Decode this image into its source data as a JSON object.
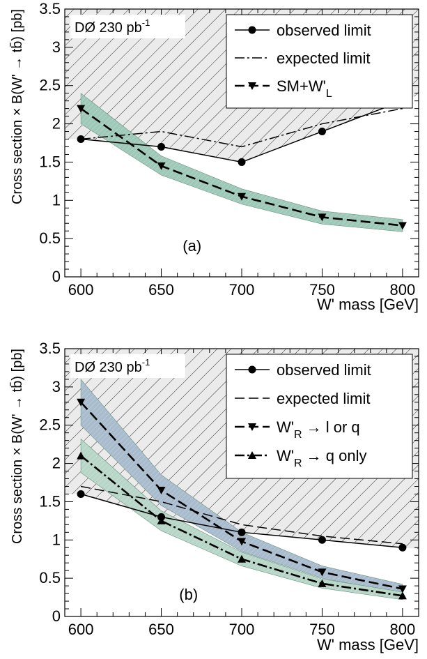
{
  "chart_data": [
    {
      "type": "line",
      "panel_label": "(a)",
      "experiment_label": "DØ 230 pb",
      "experiment_label_sup": "-1",
      "xlabel": "W' mass [GeV]",
      "ylabel": "Cross section × B(W' → tb̄) [pb]",
      "xlim": [
        590,
        810
      ],
      "ylim": [
        0,
        3.5
      ],
      "xticks": [
        600,
        650,
        700,
        750,
        800
      ],
      "yticks": [
        0,
        0.5,
        1,
        1.5,
        2,
        2.5,
        3,
        3.5
      ],
      "excluded_region_shaded": true,
      "legend_position": "top-right",
      "series": [
        {
          "name": "observed limit",
          "style": "solid-circle",
          "x": [
            600,
            650,
            700,
            750,
            800
          ],
          "y": [
            1.8,
            1.7,
            1.5,
            1.9,
            2.3
          ]
        },
        {
          "name": "expected limit",
          "style": "dash-dot",
          "x": [
            600,
            650,
            700,
            750,
            800
          ],
          "y": [
            1.8,
            1.9,
            1.7,
            2.0,
            2.2
          ]
        },
        {
          "name": "SM+W'",
          "name_sub": "L",
          "style": "dashed-downtriangle",
          "x": [
            600,
            650,
            700,
            750,
            800
          ],
          "y": [
            2.2,
            1.45,
            1.05,
            0.78,
            0.67
          ],
          "band_low": [
            2.0,
            1.33,
            0.95,
            0.69,
            0.59
          ],
          "band_high": [
            2.4,
            1.58,
            1.15,
            0.86,
            0.75
          ],
          "band_color": "#9ec9b9"
        }
      ]
    },
    {
      "type": "line",
      "panel_label": "(b)",
      "experiment_label": "DØ 230 pb",
      "experiment_label_sup": "-1",
      "xlabel": "W' mass [GeV]",
      "ylabel": "Cross section × B(W' → tb̄) [pb]",
      "xlim": [
        590,
        810
      ],
      "ylim": [
        0,
        3.5
      ],
      "xticks": [
        600,
        650,
        700,
        750,
        800
      ],
      "yticks": [
        0,
        0.5,
        1,
        1.5,
        2,
        2.5,
        3,
        3.5
      ],
      "excluded_region_shaded": true,
      "legend_position": "top-right",
      "series": [
        {
          "name": "observed limit",
          "style": "solid-circle",
          "x": [
            600,
            650,
            700,
            750,
            800
          ],
          "y": [
            1.6,
            1.3,
            1.1,
            1.0,
            0.9
          ]
        },
        {
          "name": "expected limit",
          "style": "dashed",
          "x": [
            600,
            650,
            700,
            750,
            800
          ],
          "y": [
            1.7,
            1.5,
            1.2,
            1.05,
            0.95
          ]
        },
        {
          "name": "W'",
          "name_sub": "R",
          "name_rest": " → l or q",
          "style": "dashed-downtriangle",
          "x": [
            600,
            650,
            700,
            750,
            800
          ],
          "y": [
            2.8,
            1.65,
            0.98,
            0.58,
            0.36
          ],
          "band_low": [
            2.5,
            1.45,
            0.85,
            0.5,
            0.3
          ],
          "band_high": [
            3.1,
            1.85,
            1.1,
            0.66,
            0.42
          ],
          "band_color": "#a9bccd"
        },
        {
          "name": "W'",
          "name_sub": "R",
          "name_rest": " → q only",
          "style": "dash-dot-uptriangle",
          "x": [
            600,
            650,
            700,
            750,
            800
          ],
          "y": [
            2.1,
            1.25,
            0.75,
            0.43,
            0.27
          ],
          "band_low": [
            1.88,
            1.12,
            0.66,
            0.37,
            0.22
          ],
          "band_high": [
            2.32,
            1.38,
            0.84,
            0.49,
            0.32
          ],
          "band_color": "#b7d6c8"
        }
      ]
    }
  ]
}
